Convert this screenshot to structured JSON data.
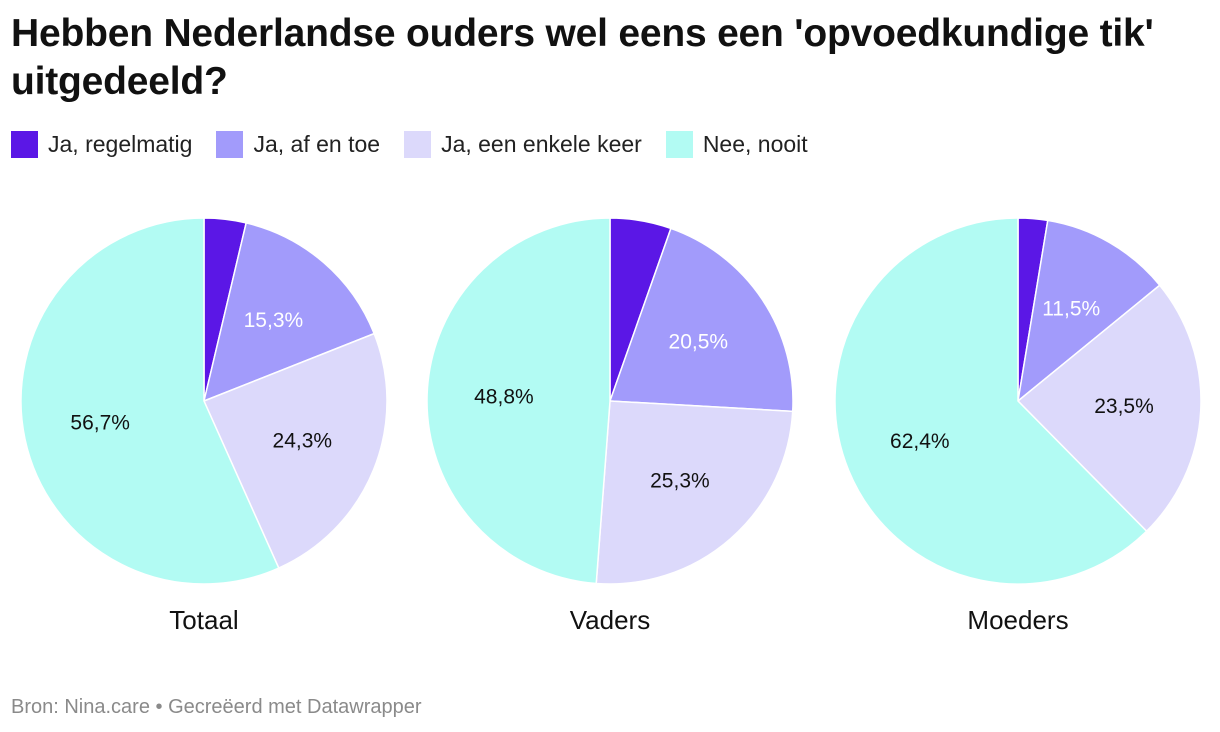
{
  "title": "Hebben Nederlandse ouders wel eens een 'opvoedkundige tik' uitgedeeld?",
  "legend": [
    {
      "label": "Ja, regelmatig",
      "color": "#5b17e6"
    },
    {
      "label": "Ja, af en toe",
      "color": "#a29bfb"
    },
    {
      "label": "Ja, een enkele keer",
      "color": "#dcd9fb"
    },
    {
      "label": "Nee, nooit",
      "color": "#b2fbf3"
    }
  ],
  "chart_data": [
    {
      "type": "pie",
      "title": "Totaal",
      "categories": [
        "Ja, regelmatig",
        "Ja, af en toe",
        "Ja, een enkele keer",
        "Nee, nooit"
      ],
      "values": [
        3.7,
        15.3,
        24.3,
        56.7
      ],
      "labels": [
        "",
        "15,3%",
        "24,3%",
        "56,7%"
      ]
    },
    {
      "type": "pie",
      "title": "Vaders",
      "categories": [
        "Ja, regelmatig",
        "Ja, af en toe",
        "Ja, een enkele keer",
        "Nee, nooit"
      ],
      "values": [
        5.4,
        20.5,
        25.3,
        48.8
      ],
      "labels": [
        "",
        "20,5%",
        "25,3%",
        "48,8%"
      ]
    },
    {
      "type": "pie",
      "title": "Moeders",
      "categories": [
        "Ja, regelmatig",
        "Ja, af en toe",
        "Ja, een enkele keer",
        "Nee, nooit"
      ],
      "values": [
        2.6,
        11.5,
        23.5,
        62.4
      ],
      "labels": [
        "",
        "11,5%",
        "23,5%",
        "62,4%"
      ]
    }
  ],
  "label_colors": [
    "#ffffff",
    "#ffffff",
    "#111111",
    "#111111"
  ],
  "source": "Bron: Nina.care • Gecreëerd met Datawrapper"
}
